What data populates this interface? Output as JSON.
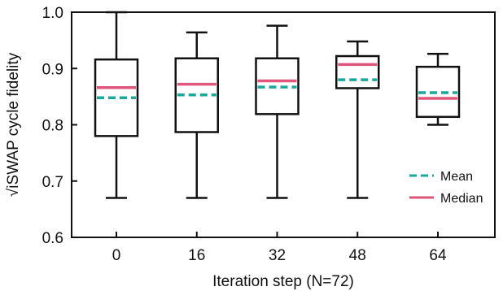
{
  "chart_data": {
    "type": "box",
    "xlabel": "Iteration step (N=72)",
    "ylabel": "√iSWAP cycle fidelity",
    "ylim": [
      0.6,
      1.0
    ],
    "yticks": [
      "0.6",
      "0.7",
      "0.8",
      "0.9",
      "1.0"
    ],
    "categories": [
      "0",
      "16",
      "32",
      "48",
      "64"
    ],
    "boxes": [
      {
        "category": "0",
        "whisker_low": 0.67,
        "q1": 0.78,
        "median": 0.866,
        "mean": 0.848,
        "q3": 0.916,
        "whisker_high": 1.0
      },
      {
        "category": "16",
        "whisker_low": 0.67,
        "q1": 0.787,
        "median": 0.872,
        "mean": 0.853,
        "q3": 0.918,
        "whisker_high": 0.964
      },
      {
        "category": "32",
        "whisker_low": 0.67,
        "q1": 0.819,
        "median": 0.878,
        "mean": 0.867,
        "q3": 0.918,
        "whisker_high": 0.976
      },
      {
        "category": "48",
        "whisker_low": 0.67,
        "q1": 0.865,
        "median": 0.907,
        "mean": 0.88,
        "q3": 0.922,
        "whisker_high": 0.948
      },
      {
        "category": "64",
        "whisker_low": 0.8,
        "q1": 0.814,
        "median": 0.847,
        "mean": 0.857,
        "q3": 0.903,
        "whisker_high": 0.926
      }
    ],
    "legend": {
      "position": "bottom-right",
      "entries": [
        {
          "label": "Mean",
          "style": "dashed",
          "color": "#1aa89a"
        },
        {
          "label": "Median",
          "style": "solid",
          "color": "#e0567a"
        }
      ]
    },
    "colors": {
      "mean": "#1aa89a",
      "median": "#e0567a",
      "box": "#111111"
    },
    "grid": false
  }
}
